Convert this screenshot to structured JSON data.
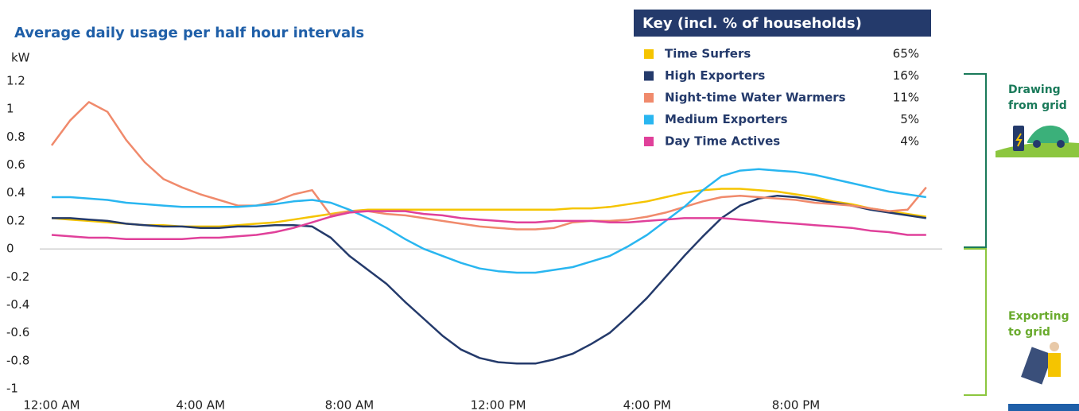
{
  "chart_data": {
    "type": "line",
    "title": "Average daily usage per half hour intervals",
    "ylabel": "kW",
    "legend_title": "Key (incl. % of households)",
    "annotations": [
      "Drawing from grid",
      "Exporting to grid"
    ],
    "categories": [
      "12:00 AM",
      null,
      null,
      null,
      null,
      null,
      null,
      null,
      "4:00 AM",
      null,
      null,
      null,
      null,
      null,
      null,
      null,
      "8:00 AM",
      null,
      null,
      null,
      null,
      null,
      null,
      null,
      "12:00 PM",
      null,
      null,
      null,
      null,
      null,
      null,
      null,
      "4:00 PM",
      null,
      null,
      null,
      null,
      null,
      null,
      null,
      "8:00 PM",
      null,
      null,
      null,
      null,
      null,
      null,
      null
    ],
    "ylim": [
      -1,
      1.2
    ],
    "yticks": [
      1.2,
      1,
      0.8,
      0.6,
      0.4,
      0.2,
      0,
      -0.2,
      -0.4,
      -0.6,
      -0.8,
      -1
    ],
    "grid": false,
    "series": [
      {
        "name": "Time Surfers",
        "share": "65%",
        "color": "#f5c400",
        "values": [
          0.22,
          0.21,
          0.2,
          0.19,
          0.18,
          0.17,
          0.17,
          0.16,
          0.16,
          0.16,
          0.17,
          0.18,
          0.19,
          0.21,
          0.23,
          0.25,
          0.27,
          0.28,
          0.28,
          0.28,
          0.28,
          0.28,
          0.28,
          0.28,
          0.28,
          0.28,
          0.28,
          0.28,
          0.29,
          0.29,
          0.3,
          0.32,
          0.34,
          0.37,
          0.4,
          0.42,
          0.43,
          0.43,
          0.42,
          0.41,
          0.39,
          0.37,
          0.34,
          0.32,
          0.29,
          0.27,
          0.25,
          0.23
        ]
      },
      {
        "name": "High Exporters",
        "share": "16%",
        "color": "#243a6b",
        "values": [
          0.22,
          0.22,
          0.21,
          0.2,
          0.18,
          0.17,
          0.16,
          0.16,
          0.15,
          0.15,
          0.16,
          0.16,
          0.17,
          0.17,
          0.16,
          0.08,
          -0.05,
          -0.15,
          -0.25,
          -0.38,
          -0.5,
          -0.62,
          -0.72,
          -0.78,
          -0.81,
          -0.82,
          -0.82,
          -0.79,
          -0.75,
          -0.68,
          -0.6,
          -0.48,
          -0.35,
          -0.2,
          -0.05,
          0.09,
          0.22,
          0.31,
          0.36,
          0.38,
          0.37,
          0.35,
          0.33,
          0.31,
          0.28,
          0.26,
          0.24,
          0.22
        ]
      },
      {
        "name": "Night-time Water Warmers",
        "share": "11%",
        "color": "#f08a6c",
        "values": [
          0.74,
          0.92,
          1.05,
          0.98,
          0.78,
          0.62,
          0.5,
          0.44,
          0.39,
          0.35,
          0.31,
          0.31,
          0.34,
          0.39,
          0.42,
          0.24,
          0.27,
          0.27,
          0.25,
          0.24,
          0.22,
          0.2,
          0.18,
          0.16,
          0.15,
          0.14,
          0.14,
          0.15,
          0.19,
          0.2,
          0.2,
          0.21,
          0.23,
          0.26,
          0.3,
          0.34,
          0.37,
          0.38,
          0.37,
          0.36,
          0.35,
          0.33,
          0.32,
          0.31,
          0.29,
          0.27,
          0.28,
          0.44
        ]
      },
      {
        "name": "Medium Exporters",
        "share": "5%",
        "color": "#29b6f0",
        "values": [
          0.37,
          0.37,
          0.36,
          0.35,
          0.33,
          0.32,
          0.31,
          0.3,
          0.3,
          0.3,
          0.3,
          0.31,
          0.32,
          0.34,
          0.35,
          0.33,
          0.28,
          0.22,
          0.15,
          0.07,
          0.0,
          -0.05,
          -0.1,
          -0.14,
          -0.16,
          -0.17,
          -0.17,
          -0.15,
          -0.13,
          -0.09,
          -0.05,
          0.02,
          0.1,
          0.2,
          0.3,
          0.42,
          0.52,
          0.56,
          0.57,
          0.56,
          0.55,
          0.53,
          0.5,
          0.47,
          0.44,
          0.41,
          0.39,
          0.37
        ]
      },
      {
        "name": "Day Time Actives",
        "share": "4%",
        "color": "#e0409a",
        "values": [
          0.1,
          0.09,
          0.08,
          0.08,
          0.07,
          0.07,
          0.07,
          0.07,
          0.08,
          0.08,
          0.09,
          0.1,
          0.12,
          0.15,
          0.19,
          0.23,
          0.26,
          0.27,
          0.27,
          0.27,
          0.25,
          0.24,
          0.22,
          0.21,
          0.2,
          0.19,
          0.19,
          0.2,
          0.2,
          0.2,
          0.19,
          0.19,
          0.2,
          0.21,
          0.22,
          0.22,
          0.22,
          0.21,
          0.2,
          0.19,
          0.18,
          0.17,
          0.16,
          0.15,
          0.13,
          0.12,
          0.1,
          0.1
        ]
      }
    ]
  }
}
